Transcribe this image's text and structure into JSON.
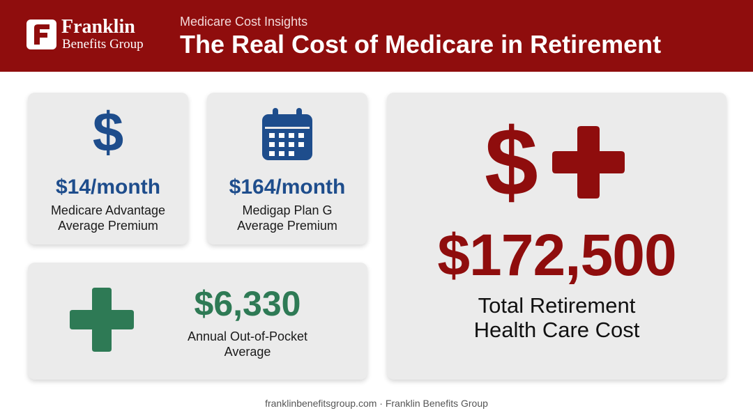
{
  "header": {
    "brand_name": "Franklin",
    "brand_sub": "Benefits Group",
    "eyebrow": "Medicare Cost Insights",
    "title": "The Real Cost of Medicare in Retirement"
  },
  "cards": {
    "advantage": {
      "icon": "dollar-icon",
      "icon_glyph": "$",
      "value": "$14/month",
      "desc_line1": "Medicare Advantage",
      "desc_line2": "Average Premium"
    },
    "medigap": {
      "icon": "calendar-icon",
      "value": "$164/month",
      "desc_line1": "Medigap Plan G",
      "desc_line2": "Average Premium"
    },
    "out_of_pocket": {
      "icon": "medical-cross-icon",
      "value": "$6,330",
      "desc_line1": "Annual Out-of-Pocket",
      "desc_line2": "Average"
    },
    "total": {
      "icons": [
        "dollar-icon",
        "medical-cross-icon"
      ],
      "icon_glyph": "$",
      "value": "$172,500",
      "desc_line1": "Total Retirement",
      "desc_line2": "Health Care Cost"
    }
  },
  "footer": "franklinbenefitsgroup.com · Franklin Benefits Group",
  "colors": {
    "brand_red": "#8f0d0d",
    "accent_blue": "#1e4d8c",
    "accent_green": "#2e7a55",
    "card_bg": "#ebebeb"
  }
}
